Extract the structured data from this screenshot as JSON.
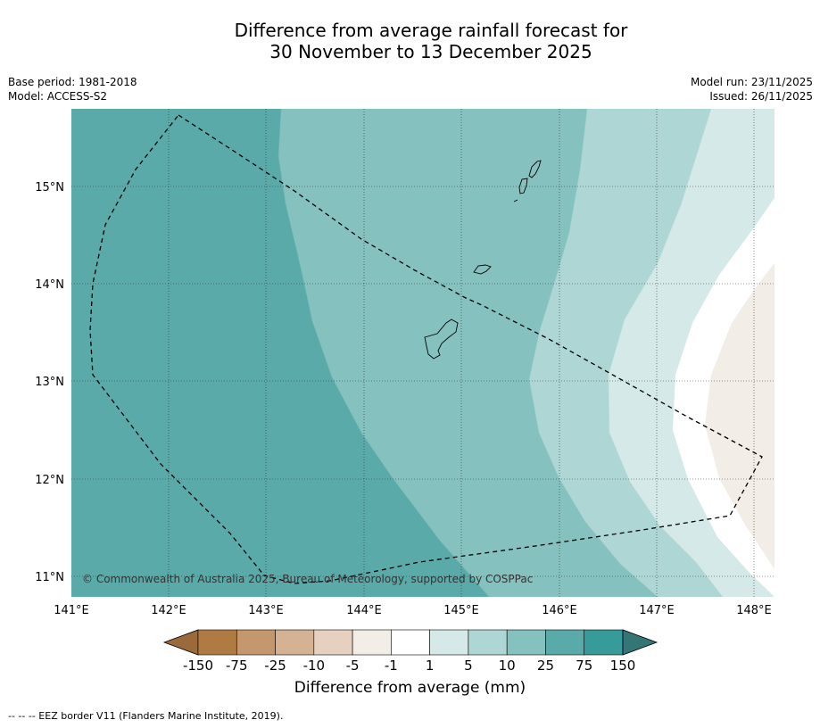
{
  "title": {
    "line1": "Difference from average rainfall forecast for",
    "line2": "30 November to 13 December 2025"
  },
  "meta": {
    "base_period": "Base period: 1981-2018",
    "model": "Model: ACCESS-S2",
    "model_run": "Model run: 23/11/2025",
    "issued": "Issued: 26/11/2025"
  },
  "map": {
    "lon_range": [
      141,
      148.2
    ],
    "lat_range": [
      10.8,
      15.8
    ],
    "lon_ticks": [
      "141°E",
      "142°E",
      "143°E",
      "144°E",
      "145°E",
      "146°E",
      "147°E",
      "148°E"
    ],
    "lat_ticks": [
      "15°N",
      "14°N",
      "13°N",
      "12°N",
      "11°N"
    ],
    "copyright": "© Commonwealth of Australia 2025, Bureau of Meteorology, supported by COSPPac"
  },
  "colorbar": {
    "labels": [
      "-150",
      "-75",
      "-25",
      "-10",
      "-5",
      "-1",
      "1",
      "5",
      "10",
      "25",
      "75",
      "150"
    ],
    "colors": [
      "#9b6a3c",
      "#b07a43",
      "#c4976c",
      "#d5b293",
      "#e6d1c1",
      "#f2ede6",
      "#ffffff",
      "#d4e9e8",
      "#aed6d5",
      "#84c1bf",
      "#5aaaa9",
      "#379b99",
      "#347675"
    ],
    "title": "Difference from average (mm)"
  },
  "footer": {
    "text": "--  --  -- EEZ border V11 (Flanders Marine Institute, 2019)."
  },
  "colors": {
    "dark_teal": "#5aaaa9",
    "mid_teal": "#84c1bf",
    "light_teal": "#aed6d5",
    "pale_teal": "#d4e9e8",
    "white": "#ffffff",
    "pale_brown": "#f2ede6"
  }
}
